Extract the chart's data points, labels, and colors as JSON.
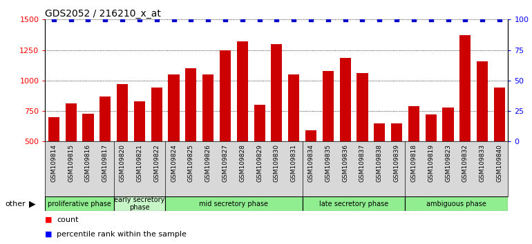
{
  "title": "GDS2052 / 216210_x_at",
  "samples": [
    "GSM109814",
    "GSM109815",
    "GSM109816",
    "GSM109817",
    "GSM109820",
    "GSM109821",
    "GSM109822",
    "GSM109824",
    "GSM109825",
    "GSM109826",
    "GSM109827",
    "GSM109828",
    "GSM109829",
    "GSM109830",
    "GSM109831",
    "GSM109834",
    "GSM109835",
    "GSM109836",
    "GSM109837",
    "GSM109838",
    "GSM109839",
    "GSM109818",
    "GSM109819",
    "GSM109823",
    "GSM109832",
    "GSM109833",
    "GSM109840"
  ],
  "counts": [
    700,
    810,
    730,
    870,
    970,
    830,
    940,
    1050,
    1100,
    1050,
    1250,
    1320,
    800,
    1300,
    1050,
    590,
    1080,
    1185,
    1060,
    650,
    650,
    790,
    720,
    780,
    1370,
    1155,
    940
  ],
  "phases": [
    {
      "label": "proliferative phase",
      "start": 0,
      "end": 4,
      "color": "#90ee90",
      "light": false
    },
    {
      "label": "early secretory\nphase",
      "start": 4,
      "end": 7,
      "color": "#c8f5c8",
      "light": true
    },
    {
      "label": "mid secretory phase",
      "start": 7,
      "end": 15,
      "color": "#90ee90",
      "light": false
    },
    {
      "label": "late secretory phase",
      "start": 15,
      "end": 21,
      "color": "#90ee90",
      "light": false
    },
    {
      "label": "ambiguous phase",
      "start": 21,
      "end": 27,
      "color": "#90ee90",
      "light": false
    }
  ],
  "bar_color": "#cc0000",
  "dot_color": "#0000cc",
  "ylim_left": [
    500,
    1500
  ],
  "ylim_right": [
    0,
    100
  ],
  "yticks_left": [
    500,
    750,
    1000,
    1250,
    1500
  ],
  "yticks_right": [
    0,
    25,
    50,
    75,
    100
  ]
}
